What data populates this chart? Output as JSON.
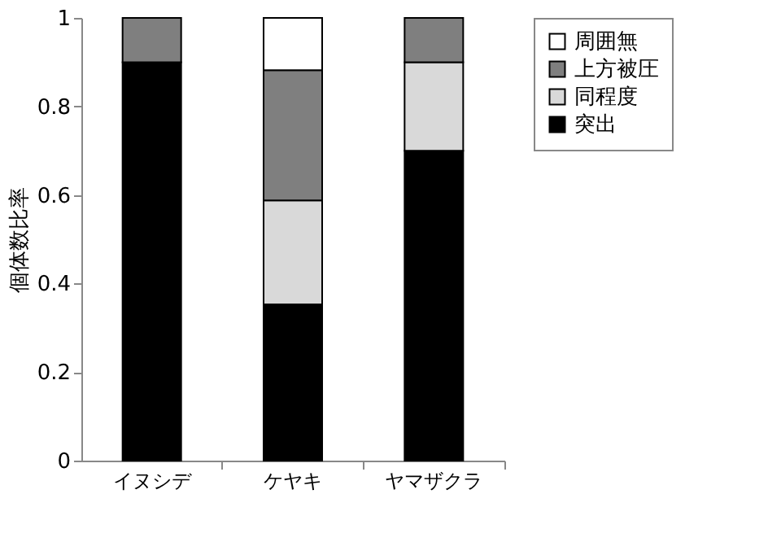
{
  "chart_data": {
    "type": "bar",
    "stacked": true,
    "ylabel": "個体数比率",
    "categories": [
      "イヌシデ",
      "ケヤキ",
      "ヤマザクラ"
    ],
    "series": [
      {
        "name": "突出",
        "color": "#000000",
        "values": [
          0.9,
          0.353,
          0.7
        ]
      },
      {
        "name": "同程度",
        "color": "#d9d9d9",
        "values": [
          null,
          0.235,
          0.2
        ]
      },
      {
        "name": "上方被圧",
        "color": "#7f7f7f",
        "values": [
          0.1,
          0.294,
          0.1
        ]
      },
      {
        "name": "周囲無",
        "color": "#ffffff",
        "values": [
          null,
          0.118,
          null
        ]
      }
    ],
    "ylim": [
      0,
      1
    ],
    "yticks": [
      0,
      0.2,
      0.4,
      0.6,
      0.8,
      1
    ],
    "grid": false,
    "legend": "right"
  }
}
